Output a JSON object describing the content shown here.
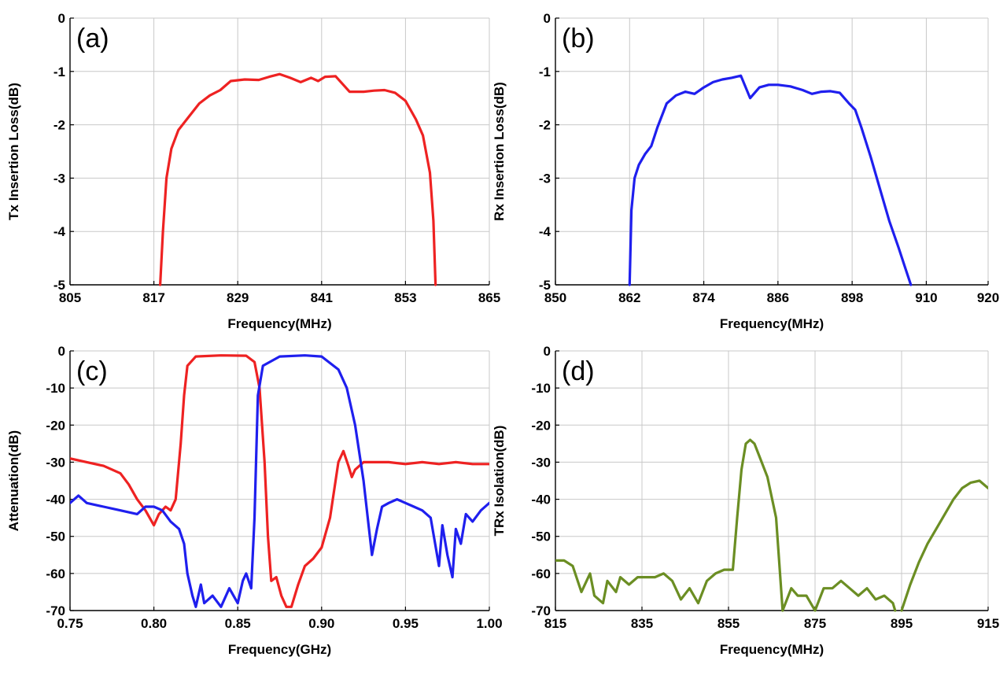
{
  "chart_data": [
    {
      "type": "line",
      "panel_label": "(a)",
      "xlabel": "Frequency(MHz)",
      "ylabel": "Tx Insertion Loss(dB)",
      "xlim": [
        805,
        865
      ],
      "ylim": [
        -5,
        0
      ],
      "xticks": [
        805,
        817,
        829,
        841,
        853,
        865
      ],
      "xtick_labels": [
        "805",
        "817",
        "829",
        "841",
        "853",
        "865"
      ],
      "yticks": [
        0,
        -1,
        -2,
        -3,
        -4,
        -5
      ],
      "ytick_labels": [
        "0",
        "-1",
        "-2",
        "-3",
        "-4",
        "-5"
      ],
      "grid": true,
      "series": [
        {
          "color": "#ee2222",
          "x": [
            817.9,
            818.3,
            818.8,
            819.5,
            820.5,
            822,
            823.5,
            825,
            826.5,
            828,
            830,
            832,
            833.5,
            835,
            836.5,
            838,
            839.5,
            840.5,
            841.5,
            843,
            845,
            847,
            848.5,
            850,
            851.5,
            853,
            854.5,
            855.5,
            856.5,
            857,
            857.3
          ],
          "y": [
            -5.0,
            -4.0,
            -3.0,
            -2.45,
            -2.1,
            -1.85,
            -1.6,
            -1.45,
            -1.35,
            -1.18,
            -1.15,
            -1.16,
            -1.1,
            -1.05,
            -1.12,
            -1.2,
            -1.12,
            -1.18,
            -1.1,
            -1.09,
            -1.38,
            -1.38,
            -1.36,
            -1.35,
            -1.4,
            -1.55,
            -1.9,
            -2.2,
            -2.9,
            -3.8,
            -5.0
          ]
        }
      ]
    },
    {
      "type": "line",
      "panel_label": "(b)",
      "xlabel": "Frequency(MHz)",
      "ylabel": "Rx Insertion Loss(dB)",
      "xlim": [
        850,
        920
      ],
      "ylim": [
        -5,
        0
      ],
      "xticks": [
        850,
        862,
        874,
        886,
        898,
        910,
        920
      ],
      "xtick_labels": [
        "850",
        "862",
        "874",
        "886",
        "898",
        "910",
        "920"
      ],
      "yticks": [
        0,
        -1,
        -2,
        -3,
        -4,
        -5
      ],
      "ytick_labels": [
        "0",
        "-1",
        "-2",
        "-3",
        "-4",
        "-5"
      ],
      "grid": true,
      "series": [
        {
          "color": "#1f1fee",
          "x": [
            862.0,
            862.3,
            862.8,
            863.5,
            864.5,
            865.5,
            866.5,
            868,
            869.5,
            871,
            872.5,
            874,
            875.5,
            877,
            878.5,
            880,
            881.5,
            883,
            884.5,
            886,
            888,
            890,
            891.5,
            893,
            894.5,
            896,
            897.5,
            898.5,
            899.5,
            901,
            902.5,
            904,
            905.5,
            906.5,
            907.5
          ],
          "y": [
            -5.0,
            -3.6,
            -3.0,
            -2.75,
            -2.55,
            -2.4,
            -2.05,
            -1.6,
            -1.45,
            -1.38,
            -1.42,
            -1.3,
            -1.2,
            -1.15,
            -1.12,
            -1.08,
            -1.5,
            -1.3,
            -1.25,
            -1.25,
            -1.28,
            -1.35,
            -1.42,
            -1.38,
            -1.37,
            -1.4,
            -1.6,
            -1.72,
            -2.05,
            -2.6,
            -3.2,
            -3.8,
            -4.3,
            -4.65,
            -5.0
          ]
        }
      ]
    },
    {
      "type": "line",
      "panel_label": "(c)",
      "xlabel": "Frequency(GHz)",
      "ylabel": "Attenuation(dB)",
      "xlim": [
        0.75,
        1.0
      ],
      "ylim": [
        -70,
        0
      ],
      "xticks": [
        0.75,
        0.8,
        0.85,
        0.9,
        0.95,
        1.0
      ],
      "xtick_labels": [
        "0.75",
        "0.80",
        "0.85",
        "0.90",
        "0.95",
        "1.00"
      ],
      "yticks": [
        0,
        -10,
        -20,
        -30,
        -40,
        -50,
        -60,
        -70
      ],
      "ytick_labels": [
        "0",
        "-10",
        "-20",
        "-30",
        "-40",
        "-50",
        "-60",
        "-70"
      ],
      "grid": true,
      "series": [
        {
          "color": "#ee2222",
          "x": [
            0.75,
            0.76,
            0.77,
            0.78,
            0.785,
            0.79,
            0.795,
            0.8,
            0.803,
            0.807,
            0.81,
            0.813,
            0.816,
            0.818,
            0.82,
            0.825,
            0.84,
            0.855,
            0.86,
            0.863,
            0.866,
            0.868,
            0.87,
            0.873,
            0.876,
            0.879,
            0.882,
            0.886,
            0.89,
            0.895,
            0.9,
            0.905,
            0.91,
            0.913,
            0.916,
            0.918,
            0.92,
            0.925,
            0.93,
            0.94,
            0.95,
            0.96,
            0.97,
            0.98,
            0.99,
            1.0
          ],
          "y": [
            -29,
            -30,
            -31,
            -33,
            -36,
            -40,
            -43,
            -47,
            -44,
            -42,
            -43,
            -40,
            -25,
            -12,
            -4,
            -1.5,
            -1.2,
            -1.3,
            -3,
            -10,
            -30,
            -50,
            -62,
            -61,
            -66,
            -69,
            -69,
            -63,
            -58,
            -56,
            -53,
            -45,
            -30,
            -27,
            -31,
            -34,
            -32,
            -30,
            -30,
            -30,
            -30.5,
            -30,
            -30.5,
            -30,
            -30.5,
            -30.5
          ]
        },
        {
          "color": "#1f1fee",
          "x": [
            0.75,
            0.755,
            0.76,
            0.77,
            0.78,
            0.79,
            0.795,
            0.8,
            0.805,
            0.81,
            0.815,
            0.818,
            0.82,
            0.823,
            0.825,
            0.828,
            0.83,
            0.835,
            0.84,
            0.845,
            0.85,
            0.853,
            0.855,
            0.858,
            0.86,
            0.862,
            0.865,
            0.875,
            0.89,
            0.9,
            0.91,
            0.915,
            0.92,
            0.925,
            0.928,
            0.93,
            0.933,
            0.936,
            0.94,
            0.945,
            0.95,
            0.955,
            0.96,
            0.965,
            0.97,
            0.972,
            0.975,
            0.978,
            0.98,
            0.983,
            0.986,
            0.99,
            0.995,
            1.0
          ],
          "y": [
            -41,
            -39,
            -41,
            -42,
            -43,
            -44,
            -42,
            -42,
            -43,
            -46,
            -48,
            -52,
            -60,
            -66,
            -69,
            -63,
            -68,
            -66,
            -69,
            -64,
            -68,
            -62,
            -60,
            -64,
            -45,
            -12,
            -4,
            -1.5,
            -1.2,
            -1.5,
            -5,
            -10,
            -20,
            -35,
            -47,
            -55,
            -48,
            -42,
            -41,
            -40,
            -41,
            -42,
            -43,
            -45,
            -58,
            -47,
            -55,
            -61,
            -48,
            -52,
            -44,
            -46,
            -43,
            -41
          ]
        }
      ]
    },
    {
      "type": "line",
      "panel_label": "(d)",
      "xlabel": "Frequency(MHz)",
      "ylabel": "TRx Isolation(dB)",
      "xlim": [
        815,
        915
      ],
      "ylim": [
        -70,
        0
      ],
      "xticks": [
        815,
        835,
        855,
        875,
        895,
        915
      ],
      "xtick_labels": [
        "815",
        "835",
        "855",
        "875",
        "895",
        "915"
      ],
      "yticks": [
        0,
        -10,
        -20,
        -30,
        -40,
        -50,
        -60,
        -70
      ],
      "ytick_labels": [
        "0",
        "-10",
        "-20",
        "-30",
        "-40",
        "-50",
        "-60",
        "-70"
      ],
      "grid": true,
      "series": [
        {
          "color": "#6b8e23",
          "x": [
            815,
            817,
            819,
            821,
            823,
            824,
            826,
            827,
            829,
            830,
            832,
            834,
            836,
            838,
            840,
            842,
            844,
            846,
            848,
            850,
            852,
            854,
            856,
            857,
            858,
            859,
            860,
            861,
            862,
            864,
            866,
            867.5,
            869.5,
            871,
            873,
            875,
            877,
            879,
            881,
            883,
            885,
            887,
            889,
            891,
            893,
            893.5
          ],
          "y": [
            -56.5,
            -56.5,
            -58,
            -65,
            -60,
            -66,
            -68,
            -62,
            -65,
            -61,
            -63,
            -61,
            -61,
            -61,
            -60,
            -62,
            -67,
            -64,
            -68,
            -62,
            -60,
            -59,
            -59,
            -45,
            -32,
            -25,
            -24,
            -25,
            -28,
            -34,
            -45,
            -70,
            -64,
            -66,
            -66,
            -70,
            -64,
            -64,
            -62,
            -64,
            -66,
            -64,
            -67,
            -66,
            -68,
            -70
          ],
          "segment_break_after_index": 27
        },
        {
          "color": "#6b8e23",
          "x": [
            895,
            897,
            899,
            901,
            903,
            905,
            907,
            909,
            911,
            913,
            915
          ],
          "y": [
            -70,
            -63,
            -57,
            -52,
            -48,
            -44,
            -40,
            -37,
            -35.5,
            -35,
            -37
          ]
        }
      ]
    }
  ]
}
